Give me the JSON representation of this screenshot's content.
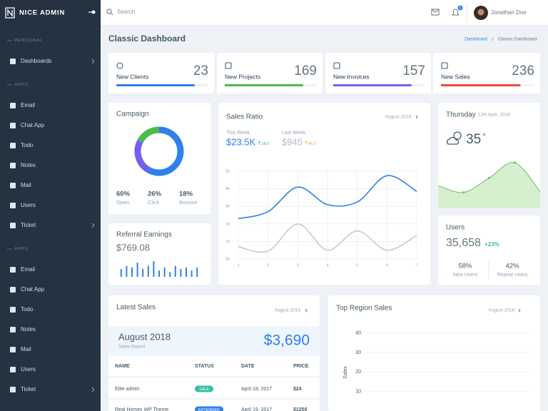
{
  "sidebar": {
    "brand": "NICE ADMIN",
    "sections": [
      {
        "heading": "PERSONAL",
        "items": [
          "Dashboards"
        ]
      },
      {
        "heading": "APPS",
        "items": [
          "Email",
          "Chat App",
          "Todo",
          "Notes",
          "Mail",
          "Users",
          "Ticket"
        ]
      },
      {
        "heading": "APPS",
        "items": [
          "Email",
          "Chat App",
          "Todo",
          "Notes",
          "Mail",
          "Users",
          "Ticket"
        ]
      }
    ]
  },
  "topbar": {
    "search": "Search",
    "notifications": "1",
    "user": "Jonathan Doe"
  },
  "page_header": {
    "title": "Classic Dashboard",
    "breadcrumb": [
      "Dashboard",
      "Classic Dashboard"
    ]
  },
  "stats": [
    {
      "label": "New Clients",
      "value": 23,
      "color": "#2f80ed"
    },
    {
      "label": "New Projects",
      "value": 169,
      "color": "#4cba4a"
    },
    {
      "label": "New Invoices",
      "value": 157,
      "color": "#7460ee"
    },
    {
      "label": "New Sales",
      "value": 236,
      "color": "#f0483e"
    }
  ],
  "sales_ratio": {
    "period": "August 2018",
    "this_week": {
      "label": "This Week",
      "value": "$23.5K",
      "change": "18.6"
    },
    "last_week": {
      "label": "Last Week",
      "value": "$945",
      "change": "46.3"
    }
  },
  "weather": {
    "day": "Thursday",
    "date": "12th April, 2018",
    "temperature": "35",
    "unit": "°"
  },
  "users": {
    "title": "Users",
    "total": "35,658",
    "change": "+23%",
    "breakdown": [
      {
        "value": "58%",
        "label": "New Users"
      },
      {
        "value": "42%",
        "label": "Repeat Users"
      }
    ]
  },
  "latest_sales": {
    "title": "Latest Sales",
    "period": "August 2018",
    "summary_period": "August 2018",
    "summary_label": "Sales Report",
    "total": "$3,690",
    "columns": [
      "NAME",
      "STATUS",
      "DATE",
      "PRICE"
    ],
    "rows": [
      [
        "Elite admin",
        "SALE",
        "April 18, 2017",
        "$24"
      ],
      [
        "Real Homes WP Theme",
        "EXTENDED",
        "April 19, 2017",
        "$1250"
      ]
    ],
    "status_colors": [
      "#36bea6",
      "#2f80ed"
    ]
  },
  "chart_data": [
    {
      "type": "donut",
      "title": "Campaign",
      "categories": [
        "Open",
        "Click",
        "Bounce"
      ],
      "values": [
        60,
        26,
        18
      ],
      "value_labels": [
        "60%",
        "26%",
        "18%"
      ],
      "colors": [
        "#2f80ed",
        "#7460ee",
        "#4cba4a"
      ]
    },
    {
      "type": "line",
      "title": "Sales Ratio",
      "x": [
        1,
        2,
        3,
        4,
        5,
        6,
        7
      ],
      "xlim": [
        1,
        7
      ],
      "xticks": [
        1,
        2,
        3,
        4,
        5,
        6,
        7
      ],
      "ylim": [
        0,
        5
      ],
      "yticks": [
        {
          "value": 0,
          "label": "0k"
        },
        {
          "value": 1,
          "label": "1k"
        },
        {
          "value": 2,
          "label": "2k"
        },
        {
          "value": 3,
          "label": "3k"
        },
        {
          "value": 4,
          "label": "4k"
        },
        {
          "value": 5,
          "label": "5k"
        }
      ],
      "grid": true,
      "series": [
        {
          "color": "#2f80ed",
          "values": [
            2.3,
            2.7,
            4.1,
            3.1,
            3.25,
            4.75,
            3.85
          ]
        },
        {
          "color": "#c4cbd3",
          "values": [
            0.7,
            0.45,
            2.0,
            0.5,
            1.6,
            0.5,
            1.35
          ]
        }
      ]
    },
    {
      "type": "bar",
      "title": "Referral Earnings",
      "subtitle": "$769.08",
      "color": "#2f80ed",
      "values": [
        5,
        7,
        6,
        9,
        5,
        7,
        10,
        4,
        6,
        3,
        7,
        5,
        6,
        4,
        6
      ]
    },
    {
      "type": "area",
      "color": "#7ac26d",
      "values": [
        29,
        20,
        39,
        59,
        21
      ]
    },
    {
      "type": "bar",
      "title": "Top Region Sales",
      "period": "August 2018",
      "ylabel": "Sales",
      "ylim": [
        0,
        45
      ],
      "yticks": [
        10,
        20,
        30,
        40
      ],
      "grid": true
    }
  ]
}
